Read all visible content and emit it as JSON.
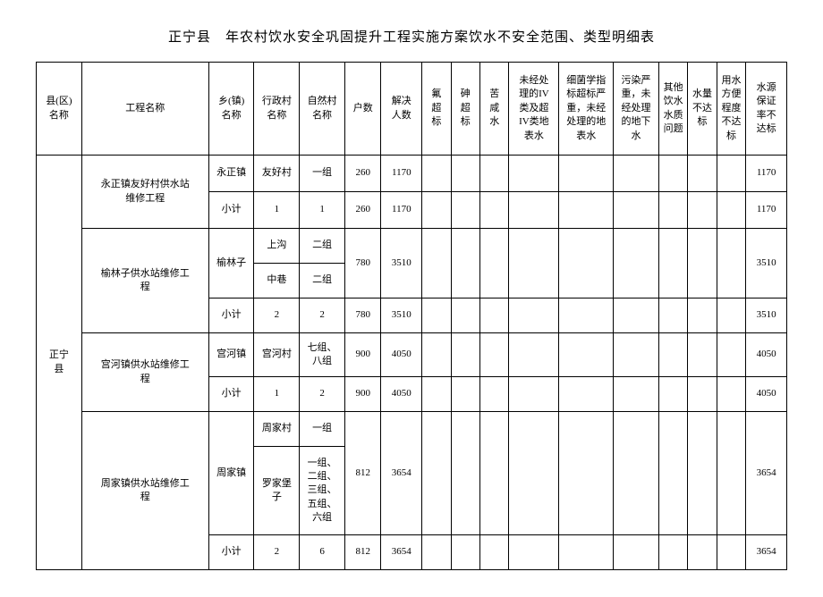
{
  "title": "正宁县　年农村饮水安全巩固提升工程实施方案饮水不安全范围、类型明细表",
  "headers": {
    "county": "县(区)\n名称",
    "project": "工程名称",
    "town": "乡(镇)\n名称",
    "village": "行政村\n名称",
    "natural": "自然村\n名称",
    "hh": "户数",
    "pop": "解决\n人数",
    "fluoride": "氟\n超\n标",
    "arsenic": "砷\n超\n标",
    "brackish": "苦\n咸\n水",
    "untreated": "未经处\n理的IV\n类及超\nIV类地\n表水",
    "bacteria": "细菌学指\n标超标严\n重，未经\n处理的地\n表水",
    "pollution": "污染严\n重，未\n经处理\n的地下\n水",
    "other": "其他\n饮水\n水质\n问题",
    "quantity": "水量\n不达\n标",
    "convenience": "用水\n方便\n程度\n不达\n标",
    "guarantee": "水源\n保证\n率不\n达标"
  },
  "county_name": "正宁\n县",
  "projects": [
    {
      "name": "永正镇友好村供水站\n维修工程",
      "rows": [
        {
          "town": "永正镇",
          "village": "友好村",
          "natural": "一组",
          "hh": "260",
          "pop": "1170",
          "guarantee": "1170"
        },
        {
          "town": "小计",
          "village": "1",
          "natural": "1",
          "hh": "260",
          "pop": "1170",
          "guarantee": "1170"
        }
      ]
    },
    {
      "name": "榆林子供水站维修工\n程",
      "rows": [
        {
          "town": "榆林子",
          "village": "上沟",
          "natural": "二组",
          "hh": "780",
          "pop": "3510",
          "guarantee": "3510"
        },
        {
          "town": "",
          "village": "中巷",
          "natural": "二组",
          "hh": "",
          "pop": "",
          "guarantee": ""
        },
        {
          "town": "小计",
          "village": "2",
          "natural": "2",
          "hh": "780",
          "pop": "3510",
          "guarantee": "3510"
        }
      ]
    },
    {
      "name": "宫河镇供水站维修工\n程",
      "rows": [
        {
          "town": "宫河镇",
          "village": "宫河村",
          "natural": "七组、\n八组",
          "hh": "900",
          "pop": "4050",
          "guarantee": "4050"
        },
        {
          "town": "小计",
          "village": "1",
          "natural": "2",
          "hh": "900",
          "pop": "4050",
          "guarantee": "4050"
        }
      ]
    },
    {
      "name": "周家镇供水站维修工\n程",
      "rows": [
        {
          "town": "周家镇",
          "village": "周家村",
          "natural": "一组",
          "hh": "812",
          "pop": "3654",
          "guarantee": "3654"
        },
        {
          "town": "",
          "village": "罗家堡\n子",
          "natural": "一组、\n二组、\n三组、\n五组、\n六组",
          "hh": "",
          "pop": "",
          "guarantee": ""
        },
        {
          "town": "小计",
          "village": "2",
          "natural": "6",
          "hh": "812",
          "pop": "3654",
          "guarantee": "3654"
        }
      ]
    }
  ]
}
